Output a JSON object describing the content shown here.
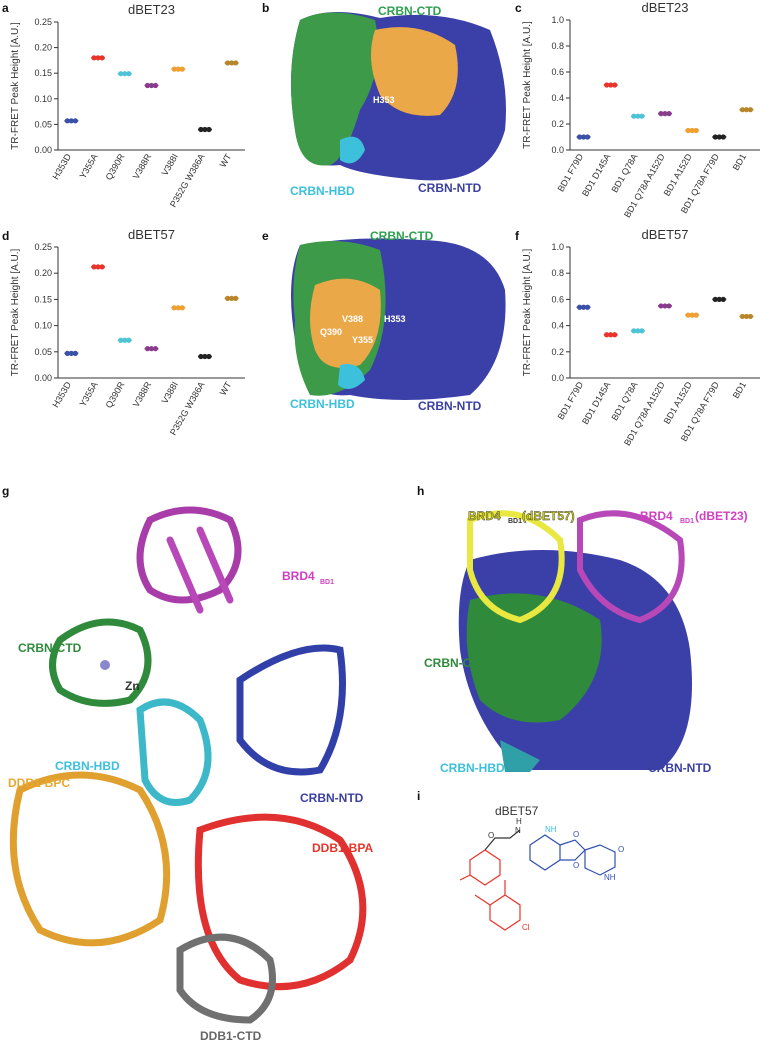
{
  "chart_data": [
    {
      "type": "dot",
      "title": "dBET23",
      "ylabel": "TR-FRET Peak Height [A.U.]",
      "categories": [
        "H353D",
        "Y355A",
        "Q390R",
        "V388R",
        "V388I",
        "P352G W386A",
        "WT"
      ],
      "values": [
        0.057,
        0.18,
        0.149,
        0.126,
        0.158,
        0.04,
        0.17
      ],
      "colors": [
        "#3a4fa8",
        "#e8342a",
        "#4dc3d6",
        "#8a3c8c",
        "#f0a030",
        "#222222",
        "#b8862a"
      ],
      "ylim": [
        0,
        0.25
      ],
      "yticks": [
        {
          "value": 0,
          "label": "0.00"
        },
        0.05,
        {
          "value": 0.1,
          "label": "0.10"
        },
        0.15,
        {
          "value": 0.2,
          "label": "0.20"
        },
        0.25
      ]
    },
    {
      "type": "dot",
      "title": "dBET23",
      "ylabel": "TR-FRET Peak Height [A.U.]",
      "categories": [
        "BD1 F79D",
        "BD1 D145A",
        "BD1 Q78A",
        "BD1 Q78A A152D",
        "BD1 A152D",
        "BD1 Q78A F79D",
        "BD1"
      ],
      "values": [
        0.1,
        0.5,
        0.26,
        0.28,
        0.15,
        0.1,
        0.31
      ],
      "colors": [
        "#3a4fa8",
        "#e8342a",
        "#4dc3d6",
        "#8a3c8c",
        "#f0a030",
        "#222222",
        "#b8862a"
      ],
      "ylim": [
        0,
        1
      ],
      "yticks": [
        {
          "value": 0,
          "label": "0.0"
        },
        0.2,
        0.4,
        0.6,
        0.8,
        {
          "value": 1,
          "label": "1.0"
        }
      ]
    },
    {
      "type": "dot",
      "title": "dBET57",
      "ylabel": "TR-FRET Peak Height [A.U.]",
      "categories": [
        "H353D",
        "Y355A",
        "Q390R",
        "V388R",
        "V388I",
        "P352G W386A",
        "WT"
      ],
      "values": [
        0.047,
        0.212,
        0.072,
        0.056,
        0.134,
        0.041,
        0.152
      ],
      "colors": [
        "#3a4fa8",
        "#e8342a",
        "#4dc3d6",
        "#8a3c8c",
        "#f0a030",
        "#222222",
        "#b8862a"
      ],
      "ylim": [
        0,
        0.25
      ],
      "yticks": [
        {
          "value": 0,
          "label": "0.00"
        },
        0.05,
        {
          "value": 0.1,
          "label": "0.10"
        },
        0.15,
        {
          "value": 0.2,
          "label": "0.20"
        },
        0.25
      ]
    },
    {
      "type": "dot",
      "title": "dBET57",
      "ylabel": "TR-FRET Peak Height [A.U.]",
      "categories": [
        "BD1 F79D",
        "BD1 D145A",
        "BD1 Q78A",
        "BD1 Q78A A152D",
        "BD1 A152D",
        "BD1 Q78A F79D",
        "BD1"
      ],
      "values": [
        0.54,
        0.33,
        0.36,
        0.55,
        0.48,
        0.6,
        0.47
      ],
      "colors": [
        "#3a4fa8",
        "#e8342a",
        "#4dc3d6",
        "#8a3c8c",
        "#f0a030",
        "#222222",
        "#b8862a"
      ],
      "ylim": [
        0,
        1
      ],
      "yticks": [
        {
          "value": 0,
          "label": "0.0"
        },
        0.2,
        0.4,
        0.6,
        0.8,
        {
          "value": 1,
          "label": "1.0"
        }
      ]
    }
  ],
  "panel_letters": [
    "a",
    "b",
    "c",
    "d",
    "e",
    "f",
    "g",
    "h",
    "i"
  ],
  "panel_b": [
    "CRBN-CTD",
    "H353",
    "CRBN-HBD",
    "CRBN-NTD"
  ],
  "panel_e": [
    "CRBN-CTD",
    "V388",
    "H353",
    "Q390",
    "Y355",
    "CRBN-HBD",
    "CRBN-NTD"
  ],
  "panel_g": [
    "BRD4",
    "BD1",
    "CRBN-CTD",
    "Zn",
    "CRBN-HBD",
    "DDB1-BPC",
    "CRBN-NTD",
    "DDB1-BPA",
    "DDB1-CTD"
  ],
  "panel_h": [
    "BRD4",
    "BD1",
    "(dBET57)",
    "BRD4",
    "BD1",
    "(dBET23)",
    "CRBN-CTD",
    "CRBN-HBD",
    "CRBN-NTD"
  ],
  "panel_i": [
    "dBET57",
    "H",
    "N",
    "O",
    "NH",
    "O",
    "O",
    "NH",
    "O",
    "Cl"
  ]
}
